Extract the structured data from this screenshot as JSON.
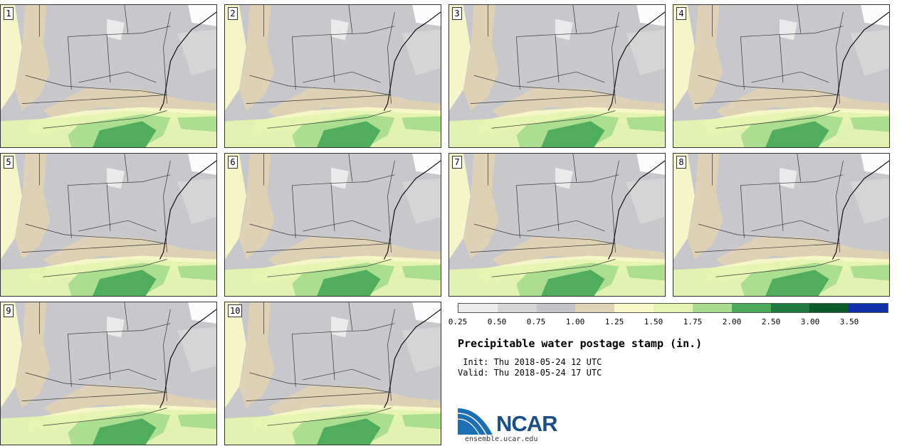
{
  "stamps": [
    {
      "label": "1"
    },
    {
      "label": "2"
    },
    {
      "label": "3"
    },
    {
      "label": "4"
    },
    {
      "label": "5"
    },
    {
      "label": "6"
    },
    {
      "label": "7"
    },
    {
      "label": "8"
    },
    {
      "label": "9"
    },
    {
      "label": "10"
    }
  ],
  "legend": {
    "title": "Precipitable water postage stamp (in.)",
    "ticks": [
      "0.25",
      "0.50",
      "0.75",
      "1.00",
      "1.25",
      "1.50",
      "1.75",
      "2.00",
      "2.50",
      "3.00",
      "3.50"
    ],
    "colors": [
      "#ececec",
      "#d6d6d6",
      "#c4c4c8",
      "#e0d2b4",
      "#f8f8c8",
      "#e4f4b0",
      "#a8dc8c",
      "#4caa5c",
      "#1e7a3e",
      "#0a5a2a",
      "#1030a8"
    ]
  },
  "init_line": " Init: Thu 2018-05-24 12 UTC",
  "valid_line": "Valid: Thu 2018-05-24 17 UTC",
  "logo": {
    "text": "NCAR"
  },
  "website": "ensemble.ucar.edu"
}
